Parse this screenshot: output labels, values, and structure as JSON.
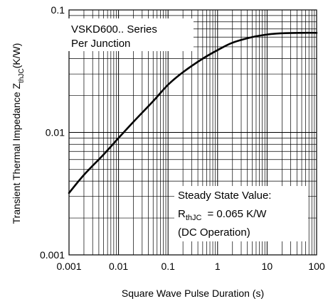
{
  "chart_data": {
    "type": "line",
    "title": "",
    "xlabel": "Square Wave Pulse Duration (s)",
    "ylabel_main": "Transient Thermal Impedance Z",
    "ylabel_sub": "thJC",
    "ylabel_unit": "(K/W)",
    "x_scale": "log",
    "y_scale": "log",
    "xlim": [
      0.001,
      100
    ],
    "ylim": [
      0.001,
      0.1
    ],
    "grid": true,
    "x_tick_labels": [
      "0.001",
      "0.01",
      "0.1",
      "1",
      "10",
      "100"
    ],
    "y_tick_labels": [
      "0.001",
      "0.01",
      "0.1"
    ],
    "series": [
      {
        "x": [
          0.001,
          0.002,
          0.005,
          0.01,
          0.02,
          0.05,
          0.1,
          0.2,
          0.5,
          1,
          2,
          5,
          10,
          20,
          50,
          100
        ],
        "y": [
          0.0032,
          0.0045,
          0.0066,
          0.009,
          0.0122,
          0.018,
          0.0245,
          0.031,
          0.04,
          0.047,
          0.054,
          0.06,
          0.063,
          0.0645,
          0.065,
          0.065
        ]
      }
    ],
    "annotations": {
      "top_left": [
        "VSKD600.. Series",
        "Per Junction"
      ],
      "bottom_right": {
        "line1": "Steady State Value:",
        "line2_main": "R",
        "line2_sub": "thJC",
        "line2_rest": "= 0.065 K/W",
        "line3": "(DC Operation)"
      }
    }
  }
}
